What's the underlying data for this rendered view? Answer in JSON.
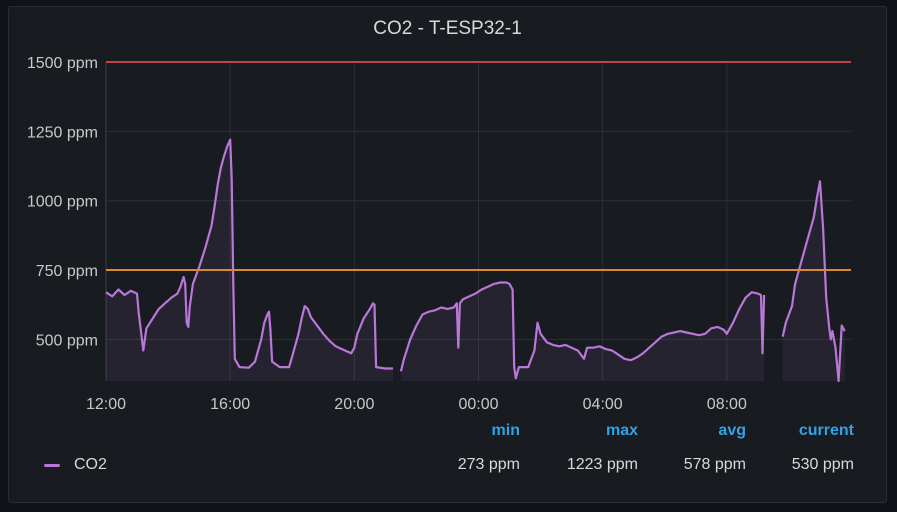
{
  "panel": {
    "title": "CO2 - T-ESP32-1"
  },
  "legend": {
    "headers": {
      "min": "min",
      "max": "max",
      "avg": "avg",
      "current": "current"
    },
    "series": [
      {
        "name": "CO2",
        "color": "#b877d9",
        "min": "273 ppm",
        "max": "1223 ppm",
        "avg": "578 ppm",
        "current": "530 ppm"
      }
    ]
  },
  "chart_data": {
    "type": "area",
    "title": "CO2 - T-ESP32-1",
    "unit": "ppm",
    "x_unit": "hours since 12:00 (Day 1)",
    "xlim": [
      0,
      24
    ],
    "ylim": [
      350,
      1500
    ],
    "x_ticks": [
      {
        "x": 0,
        "label": "12:00"
      },
      {
        "x": 4,
        "label": "16:00"
      },
      {
        "x": 8,
        "label": "20:00"
      },
      {
        "x": 12,
        "label": "00:00"
      },
      {
        "x": 16,
        "label": "04:00"
      },
      {
        "x": 20,
        "label": "08:00"
      }
    ],
    "y_ticks": [
      {
        "y": 500,
        "label": "500 ppm"
      },
      {
        "y": 750,
        "label": "750 ppm"
      },
      {
        "y": 1000,
        "label": "1000 ppm"
      },
      {
        "y": 1250,
        "label": "1250 ppm"
      },
      {
        "y": 1500,
        "label": "1500 ppm"
      }
    ],
    "thresholds": [
      {
        "value": 1500,
        "color": "#c4414a"
      },
      {
        "value": 750,
        "color": "#d9892e"
      }
    ],
    "grid": true,
    "series": [
      {
        "name": "CO2",
        "color": "#b877d9",
        "points": [
          [
            0.0,
            670
          ],
          [
            0.2,
            655
          ],
          [
            0.4,
            680
          ],
          [
            0.6,
            660
          ],
          [
            0.8,
            675
          ],
          [
            1.0,
            665
          ],
          [
            1.05,
            600
          ],
          [
            1.2,
            460
          ],
          [
            1.3,
            540
          ],
          [
            1.5,
            575
          ],
          [
            1.7,
            610
          ],
          [
            1.9,
            630
          ],
          [
            2.1,
            650
          ],
          [
            2.3,
            665
          ],
          [
            2.4,
            690
          ],
          [
            2.5,
            725
          ],
          [
            2.55,
            700
          ],
          [
            2.6,
            560
          ],
          [
            2.65,
            545
          ],
          [
            2.7,
            620
          ],
          [
            2.8,
            700
          ],
          [
            3.0,
            760
          ],
          [
            3.2,
            830
          ],
          [
            3.4,
            910
          ],
          [
            3.5,
            980
          ],
          [
            3.6,
            1060
          ],
          [
            3.7,
            1120
          ],
          [
            3.8,
            1160
          ],
          [
            3.9,
            1195
          ],
          [
            4.0,
            1220
          ],
          [
            4.05,
            1080
          ],
          [
            4.1,
            700
          ],
          [
            4.15,
            430
          ],
          [
            4.3,
            400
          ],
          [
            4.6,
            398
          ],
          [
            4.8,
            420
          ],
          [
            5.0,
            500
          ],
          [
            5.1,
            560
          ],
          [
            5.2,
            590
          ],
          [
            5.25,
            600
          ],
          [
            5.3,
            530
          ],
          [
            5.35,
            420
          ],
          [
            5.6,
            400
          ],
          [
            5.9,
            400
          ],
          [
            6.0,
            440
          ],
          [
            6.2,
            520
          ],
          [
            6.3,
            575
          ],
          [
            6.4,
            620
          ],
          [
            6.5,
            610
          ],
          [
            6.6,
            580
          ],
          [
            6.8,
            550
          ],
          [
            7.0,
            520
          ],
          [
            7.2,
            495
          ],
          [
            7.4,
            475
          ],
          [
            7.6,
            465
          ],
          [
            7.8,
            455
          ],
          [
            7.9,
            450
          ],
          [
            8.0,
            470
          ],
          [
            8.1,
            520
          ],
          [
            8.3,
            575
          ],
          [
            8.5,
            610
          ],
          [
            8.6,
            630
          ],
          [
            8.65,
            625
          ],
          [
            8.7,
            400
          ],
          [
            9.0,
            395
          ],
          [
            9.25,
            395
          ],
          [
            9.25,
            null
          ],
          [
            9.5,
            385
          ],
          [
            9.6,
            430
          ],
          [
            9.8,
            500
          ],
          [
            10.0,
            550
          ],
          [
            10.2,
            590
          ],
          [
            10.4,
            600
          ],
          [
            10.6,
            605
          ],
          [
            10.8,
            615
          ],
          [
            11.0,
            610
          ],
          [
            11.2,
            615
          ],
          [
            11.3,
            630
          ],
          [
            11.35,
            470
          ],
          [
            11.4,
            630
          ],
          [
            11.5,
            645
          ],
          [
            11.7,
            655
          ],
          [
            11.9,
            665
          ],
          [
            12.1,
            680
          ],
          [
            12.3,
            690
          ],
          [
            12.5,
            700
          ],
          [
            12.7,
            705
          ],
          [
            12.9,
            705
          ],
          [
            13.0,
            700
          ],
          [
            13.1,
            680
          ],
          [
            13.15,
            400
          ],
          [
            13.2,
            360
          ],
          [
            13.3,
            400
          ],
          [
            13.6,
            400
          ],
          [
            13.8,
            460
          ],
          [
            13.9,
            560
          ],
          [
            14.0,
            520
          ],
          [
            14.2,
            490
          ],
          [
            14.4,
            480
          ],
          [
            14.6,
            475
          ],
          [
            14.8,
            480
          ],
          [
            15.0,
            470
          ],
          [
            15.2,
            460
          ],
          [
            15.4,
            430
          ],
          [
            15.5,
            470
          ],
          [
            15.7,
            470
          ],
          [
            15.9,
            475
          ],
          [
            16.1,
            465
          ],
          [
            16.3,
            460
          ],
          [
            16.5,
            445
          ],
          [
            16.7,
            430
          ],
          [
            16.9,
            425
          ],
          [
            17.1,
            435
          ],
          [
            17.3,
            450
          ],
          [
            17.5,
            470
          ],
          [
            17.7,
            490
          ],
          [
            17.9,
            510
          ],
          [
            18.1,
            520
          ],
          [
            18.3,
            525
          ],
          [
            18.5,
            530
          ],
          [
            18.7,
            525
          ],
          [
            18.9,
            520
          ],
          [
            19.1,
            515
          ],
          [
            19.3,
            520
          ],
          [
            19.5,
            540
          ],
          [
            19.7,
            545
          ],
          [
            19.9,
            535
          ],
          [
            20.0,
            520
          ],
          [
            20.2,
            560
          ],
          [
            20.4,
            610
          ],
          [
            20.6,
            650
          ],
          [
            20.8,
            670
          ],
          [
            21.0,
            665
          ],
          [
            21.1,
            660
          ],
          [
            21.15,
            450
          ],
          [
            21.2,
            660
          ]
        ]
      },
      {
        "name": "CO2",
        "color": "#b877d9",
        "points": [
          [
            21.8,
            510
          ],
          [
            21.9,
            560
          ],
          [
            22.0,
            590
          ],
          [
            22.1,
            620
          ],
          [
            22.2,
            700
          ],
          [
            22.4,
            780
          ],
          [
            22.6,
            860
          ],
          [
            22.8,
            940
          ],
          [
            22.9,
            1010
          ],
          [
            23.0,
            1070
          ],
          [
            23.1,
            900
          ],
          [
            23.2,
            650
          ],
          [
            23.3,
            540
          ],
          [
            23.35,
            500
          ],
          [
            23.4,
            530
          ],
          [
            23.5,
            470
          ],
          [
            23.6,
            350
          ],
          [
            23.7,
            550
          ],
          [
            23.8,
            530
          ]
        ]
      }
    ]
  }
}
